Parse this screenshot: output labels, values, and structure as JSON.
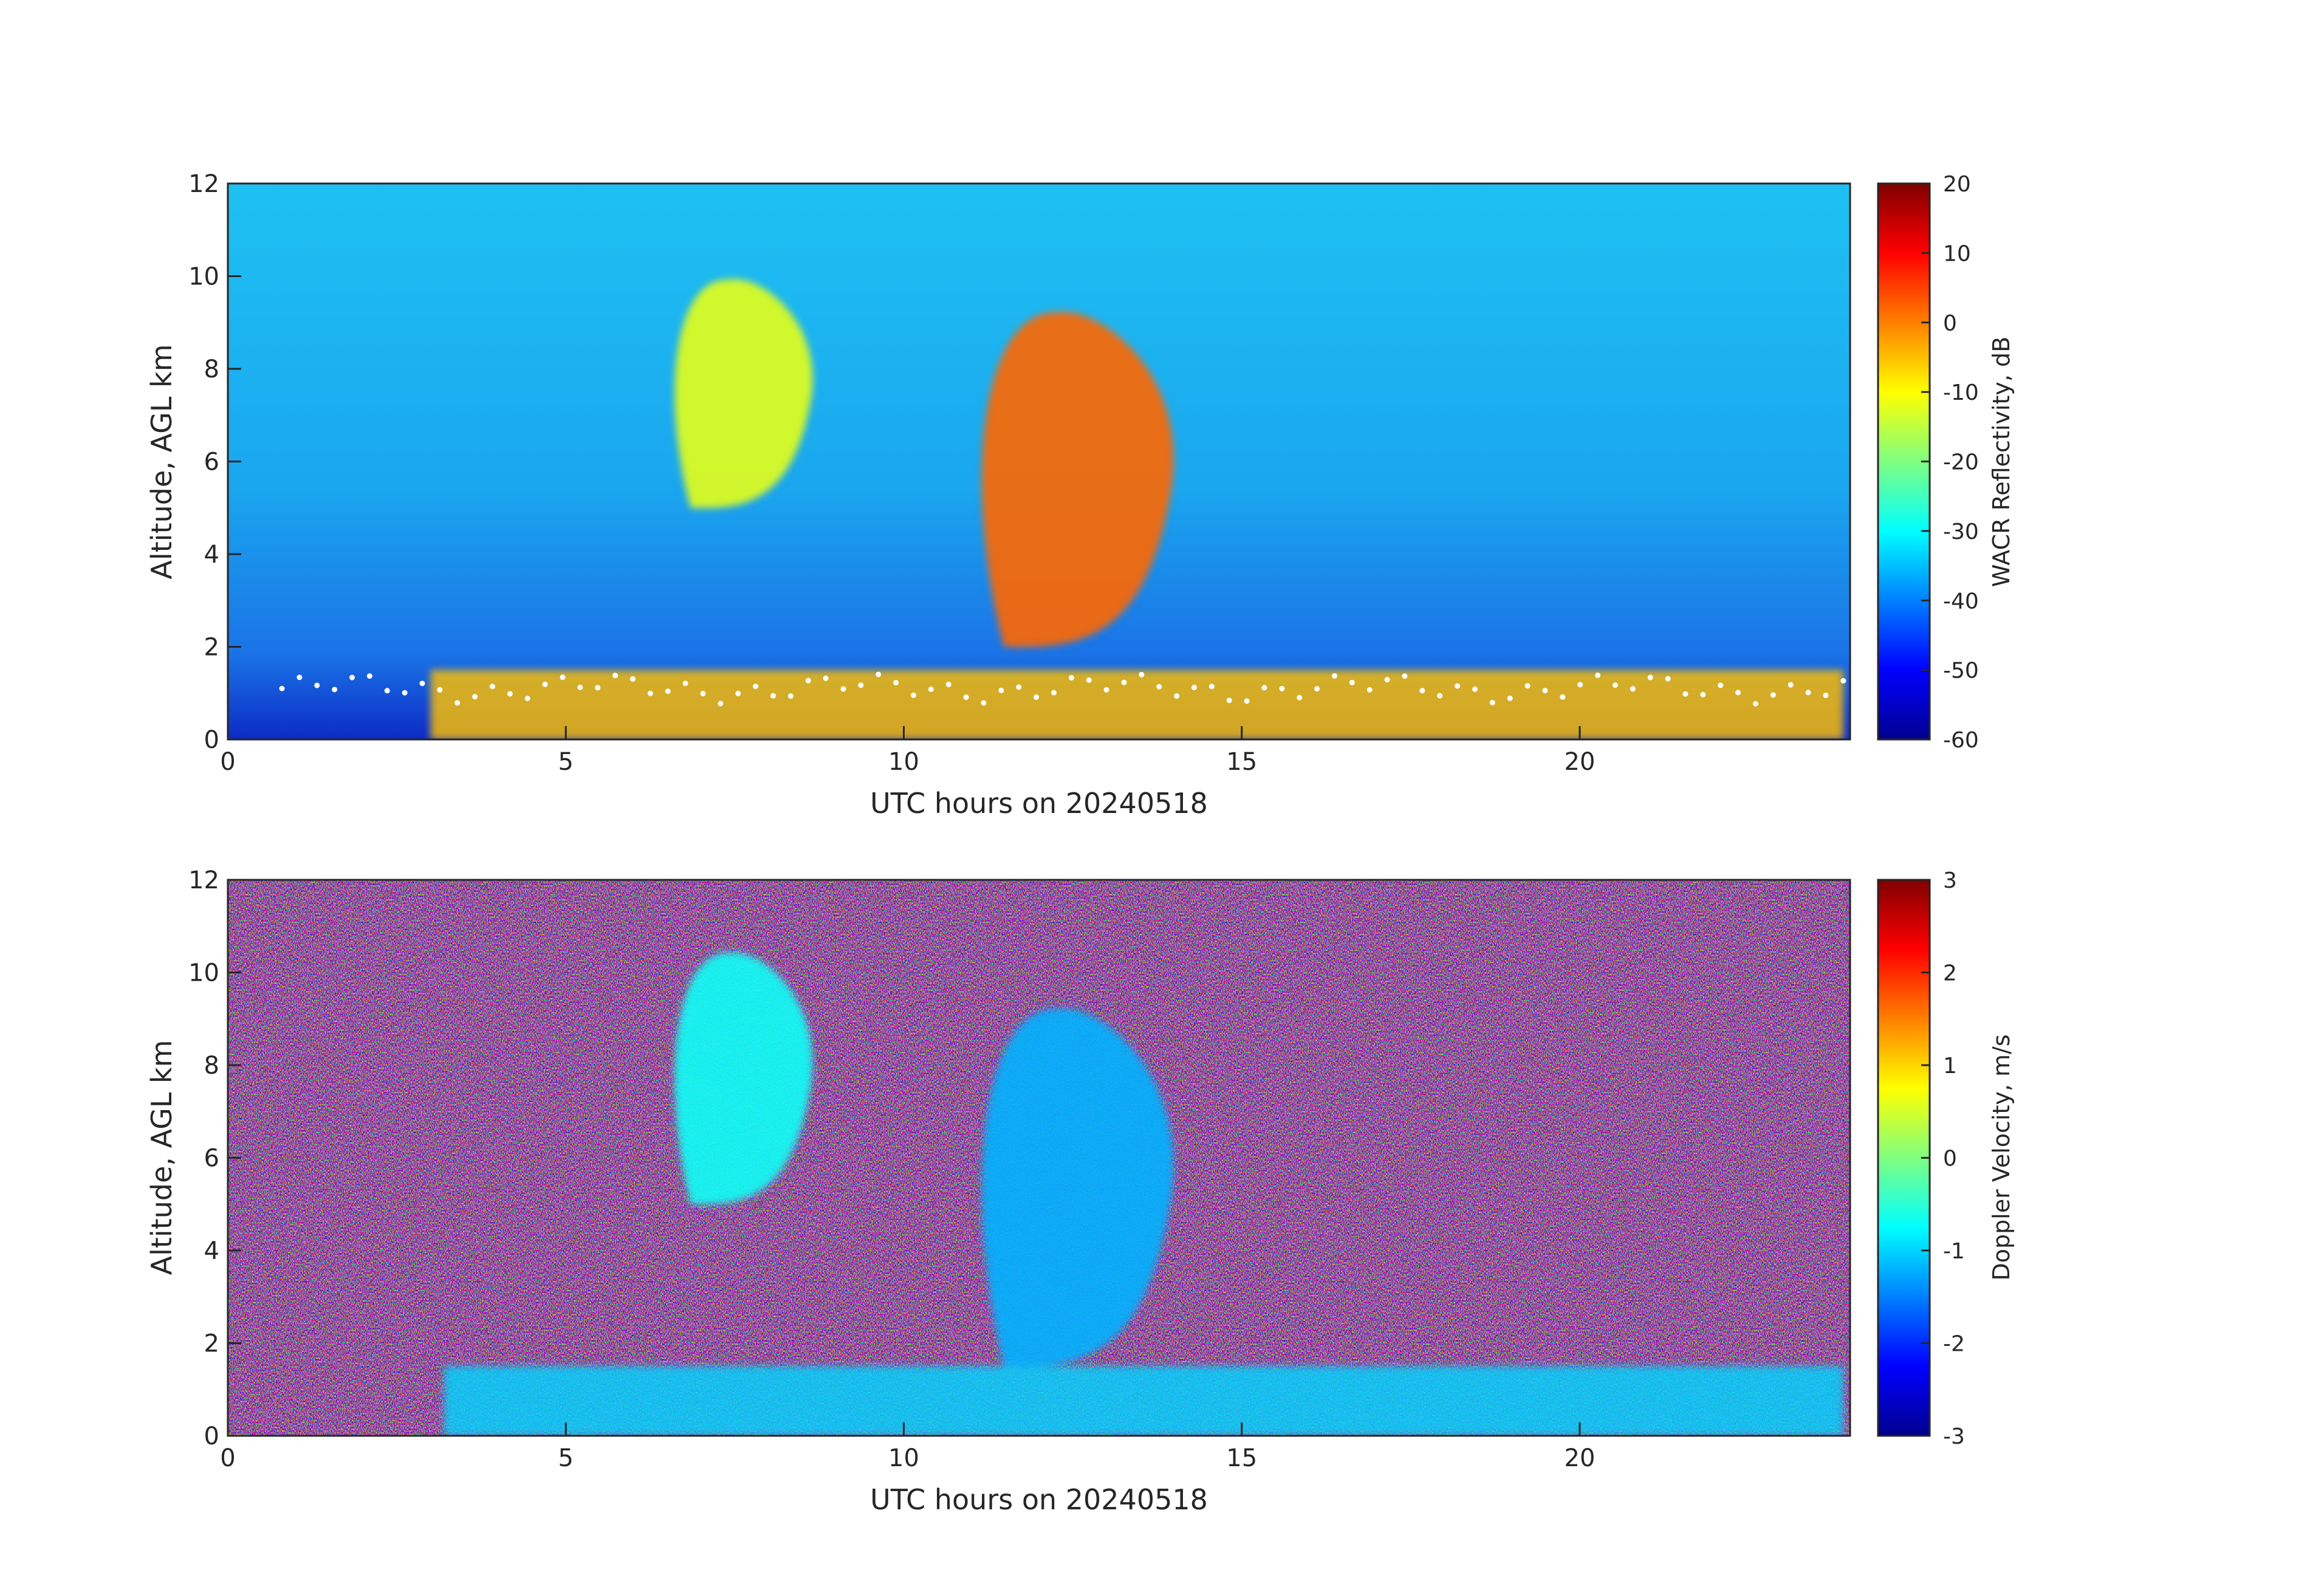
{
  "chart_data": [
    {
      "type": "heatmap",
      "xlabel": "UTC hours on 20240518",
      "ylabel": "Altitude, AGL km",
      "xlim": [
        0,
        24
      ],
      "ylim": [
        0,
        12
      ],
      "xticks": [
        0,
        5,
        10,
        15,
        20
      ],
      "yticks": [
        0,
        2,
        4,
        6,
        8,
        10,
        12
      ],
      "colorbar": {
        "label": "WACR Reflectivity, dB",
        "range": [
          -60,
          20
        ],
        "ticks": [
          20,
          10,
          0,
          -10,
          -20,
          -30,
          -40,
          -50,
          -60
        ],
        "colormap": "jet"
      },
      "background_value": -33,
      "features": [
        {
          "x_start": 6.5,
          "x_end": 8.8,
          "y_bottom": 5.0,
          "y_top": 10.0,
          "value": -12
        },
        {
          "x_start": 11.0,
          "x_end": 14.2,
          "y_bottom": 2.0,
          "y_top": 9.3,
          "value": 2
        },
        {
          "x_start": 3.0,
          "x_end": 23.9,
          "y_bottom": 0.0,
          "y_top": 1.5,
          "value": -5
        }
      ],
      "overlay": {
        "name": "ceilometer cloud base",
        "color": "#ffffff",
        "x_range": [
          0.8,
          23.9
        ],
        "y_typical": 1.1
      }
    },
    {
      "type": "heatmap",
      "xlabel": "UTC hours on 20240518",
      "ylabel": "Altitude, AGL km",
      "xlim": [
        0,
        24
      ],
      "ylim": [
        0,
        12
      ],
      "xticks": [
        0,
        5,
        10,
        15,
        20
      ],
      "yticks": [
        0,
        2,
        4,
        6,
        8,
        10,
        12
      ],
      "colorbar": {
        "label": "Doppler Velocity, m/s",
        "range": [
          -3,
          3
        ],
        "ticks": [
          3,
          2,
          1,
          0,
          -1,
          -2,
          -3
        ],
        "colormap": "jet"
      },
      "background": "noise",
      "features": [
        {
          "x_start": 6.5,
          "x_end": 8.8,
          "y_bottom": 5.0,
          "y_top": 10.5,
          "value": -0.7
        },
        {
          "x_start": 11.0,
          "x_end": 14.2,
          "y_bottom": 1.5,
          "y_top": 9.3,
          "value": -1.2
        },
        {
          "x_start": 3.2,
          "x_end": 23.9,
          "y_bottom": 0.0,
          "y_top": 1.5,
          "value": -1.0
        }
      ]
    }
  ]
}
